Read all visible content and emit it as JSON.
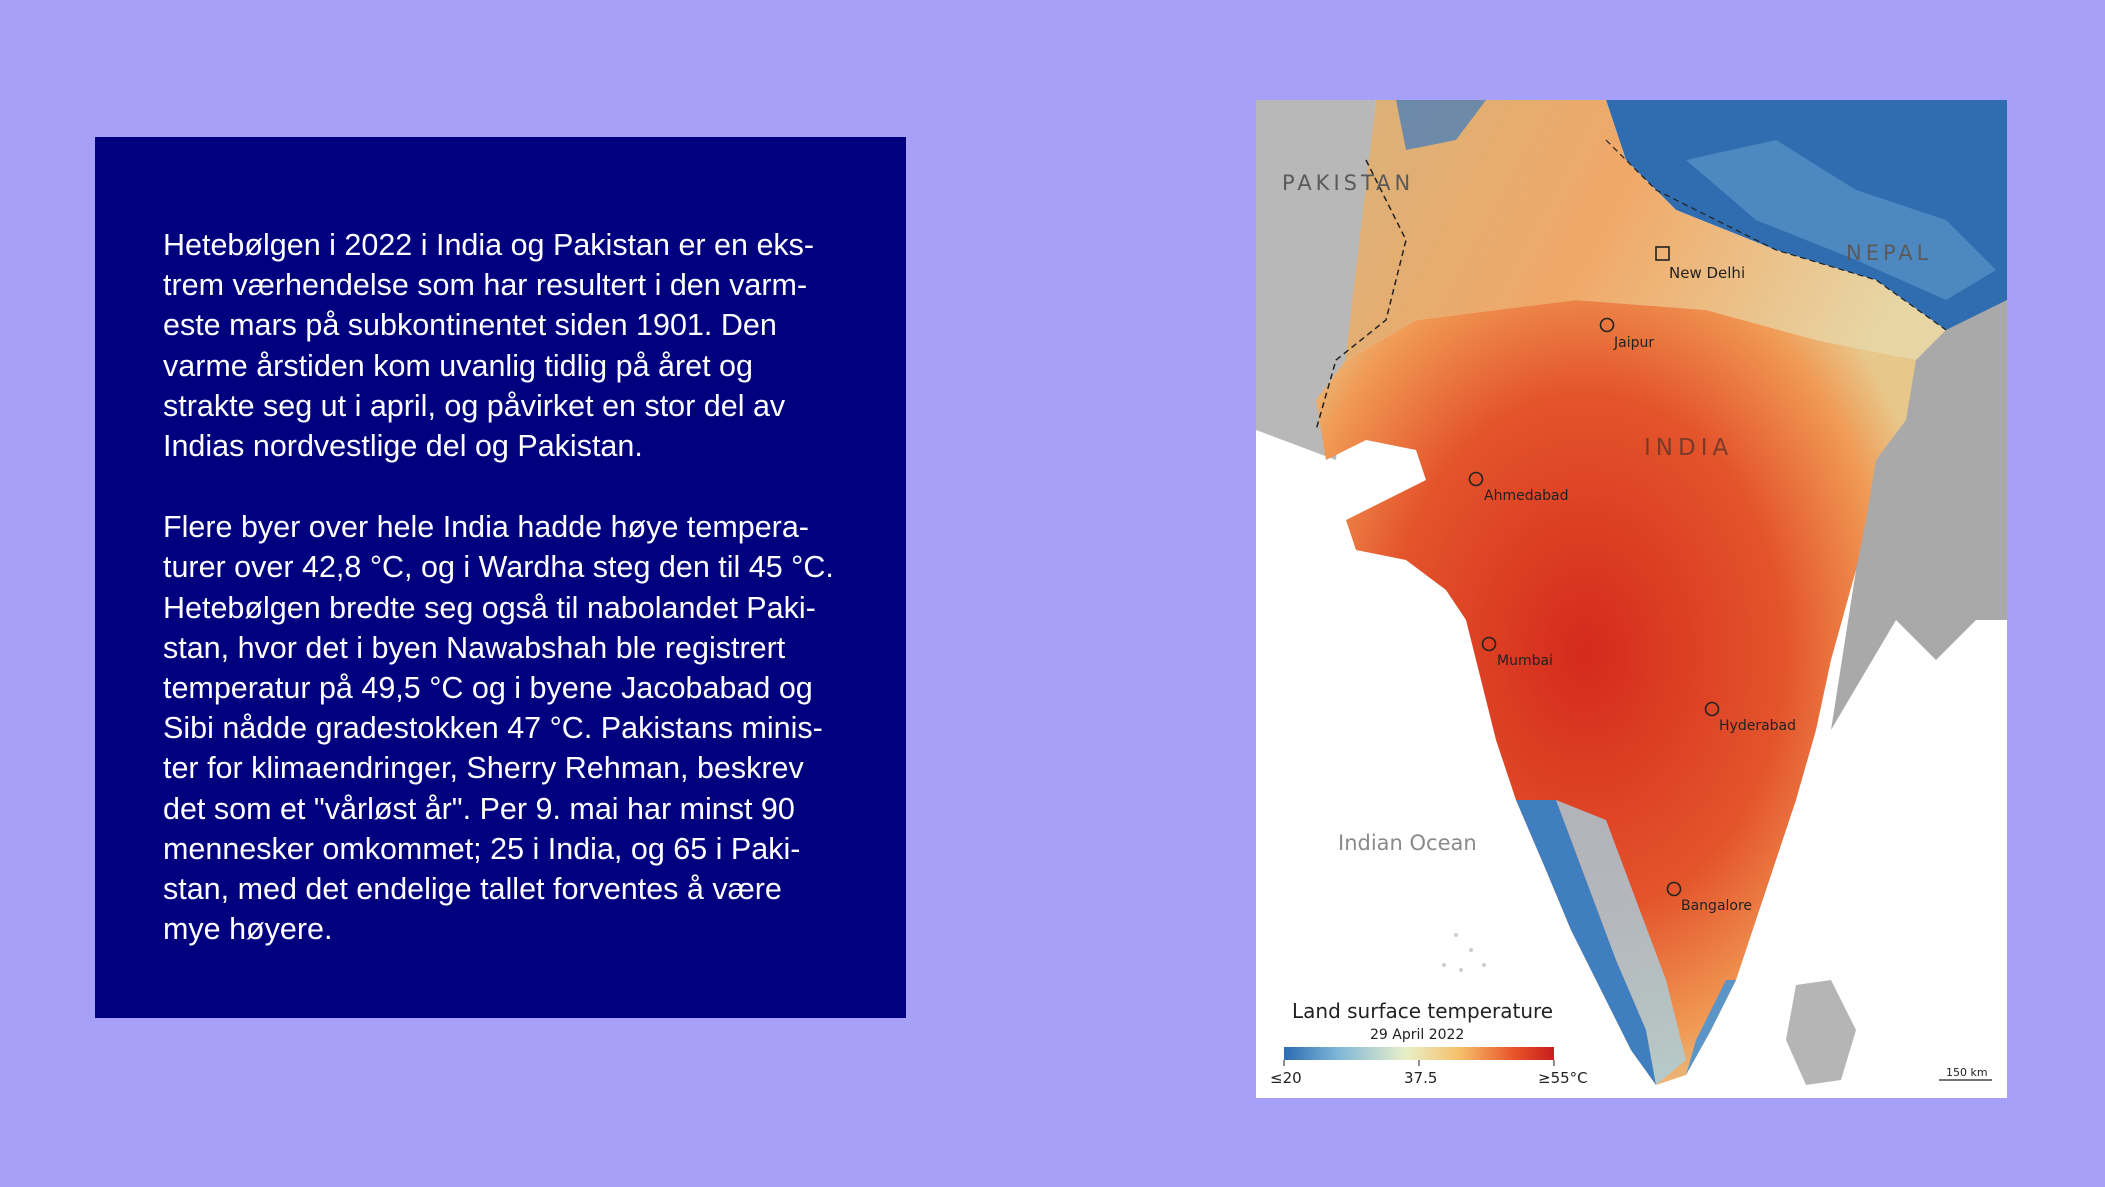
{
  "panel": {
    "paragraphs": [
      "Hetebølgen i 2022 i India og Pakistan er en eks-\ntrem værhendelse som har resultert i den varm-\neste mars på subkontinentet siden 1901. Den\nvarme årstiden kom uvanlig tidlig på året og\nstrakte seg ut i april, og påvirket en stor del av\nIndias nordvestlige del og Pakistan.",
      "Flere byer over hele India hadde høye tempera-\nturer over 42,8 °C, og i Wardha steg den til 45 °C.\nHetebølgen bredte seg også til nabolandet Paki-\nstan, hvor det i byen Nawabshah  ble registrert\ntemperatur på 49,5 °C  og i byene Jacobabad og\nSibi nådde gradestokken 47 °C. Pakistans minis-\nter for klimaendringer, Sherry Rehman, beskrev\ndet som et \"vårløst år\". Per 9. mai har minst 90\nmennesker omkommet; 25 i India, og 65 i Paki-\nstan, med det endelige tallet forventes å være\nmye høyere."
    ]
  },
  "map": {
    "countries": {
      "pakistan": "PAKISTAN",
      "nepal": "NEPAL",
      "india": "INDIA"
    },
    "cities": {
      "new_delhi": "New Delhi",
      "jaipur": "Jaipur",
      "ahmedabad": "Ahmedabad",
      "mumbai": "Mumbai",
      "hyderabad": "Hyderabad",
      "bangalore": "Bangalore"
    },
    "ocean": "Indian Ocean",
    "legend": {
      "title": "Land surface temperature",
      "date": "29 April 2022",
      "min_label": "≤20",
      "mid_label": "37.5",
      "max_label": "≥55°C",
      "colors": [
        "#2b6cb3",
        "#7fb6d8",
        "#e8efc8",
        "#f6c06a",
        "#e8552a",
        "#c81d1d"
      ]
    },
    "scale_bar": "150 km"
  },
  "colors": {
    "background": "#a7a0f8",
    "panel": "#010180",
    "hot": "#d8301f",
    "cool": "#2f6db0"
  }
}
